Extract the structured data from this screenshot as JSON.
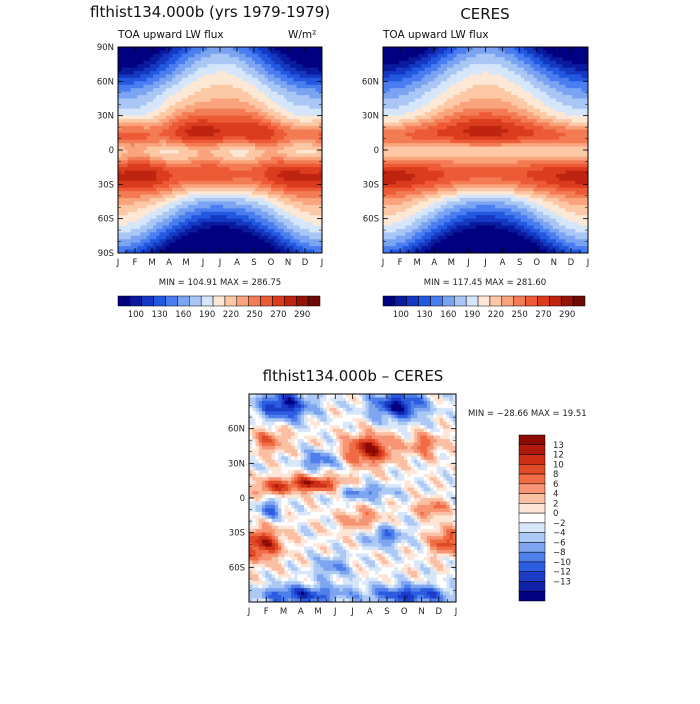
{
  "chart_data": [
    {
      "type": "heatmap",
      "title": "flthist134.000b (yrs 1979-1979)",
      "subtitle": "TOA upward LW flux",
      "units": "W/m²",
      "x": [
        "J",
        "F",
        "M",
        "A",
        "M",
        "J",
        "J",
        "A",
        "S",
        "O",
        "N",
        "D",
        "J"
      ],
      "y_labels": [
        "90N",
        "60N",
        "30N",
        "0",
        "30S",
        "60S",
        "90S"
      ],
      "minmax": "MIN = 104.91  MAX = 286.75",
      "min": 104.91,
      "max": 286.75,
      "colorbar_labels": [
        "100",
        "130",
        "160",
        "190",
        "220",
        "250",
        "270",
        "290"
      ]
    },
    {
      "type": "heatmap",
      "title": "CERES",
      "subtitle": "TOA upward LW flux",
      "x": [
        "J",
        "F",
        "M",
        "A",
        "M",
        "J",
        "J",
        "A",
        "S",
        "O",
        "N",
        "D",
        "J"
      ],
      "y_labels": [
        "60N",
        "30N",
        "0",
        "30S",
        "60S"
      ],
      "minmax": "MIN = 117.45  MAX = 281.60",
      "min": 117.45,
      "max": 281.6,
      "colorbar_labels": [
        "100",
        "130",
        "160",
        "190",
        "220",
        "250",
        "270",
        "290"
      ]
    },
    {
      "type": "heatmap",
      "title": "flthist134.000b  –  CERES",
      "x": [
        "J",
        "F",
        "M",
        "A",
        "M",
        "J",
        "J",
        "A",
        "S",
        "O",
        "N",
        "D",
        "J"
      ],
      "y_labels": [
        "60N",
        "30N",
        "0",
        "30S",
        "60S"
      ],
      "minmax": "MIN = −28.66  MAX =  19.51",
      "min": -28.66,
      "max": 19.51,
      "colorbar_labels": [
        "13",
        "12",
        "10",
        "8",
        "6",
        "4",
        "2",
        "0",
        "−2",
        "−4",
        "−6",
        "−8",
        "−10",
        "−12",
        "−13"
      ]
    }
  ],
  "colors": {
    "abs": [
      "#000080",
      "#0a1a9c",
      "#1438c2",
      "#2358e0",
      "#4a7ef0",
      "#7aa4f2",
      "#a9c6f5",
      "#d6e6fa",
      "#fde8d6",
      "#fcc8a6",
      "#f9a47c",
      "#f47c55",
      "#ec5a36",
      "#dc3c1e",
      "#be2410",
      "#951408",
      "#6e0a04"
    ],
    "diff": [
      "#8c0a04",
      "#b01a0c",
      "#cc2e16",
      "#e04a26",
      "#ef6c44",
      "#f79474",
      "#fbbfa4",
      "#fde6d8",
      "#ffffff",
      "#d8e6fa",
      "#acc8f4",
      "#7ea6f0",
      "#4f7fea",
      "#2c5ce0",
      "#1c3cc8",
      "#0e22a8",
      "#000080"
    ]
  }
}
